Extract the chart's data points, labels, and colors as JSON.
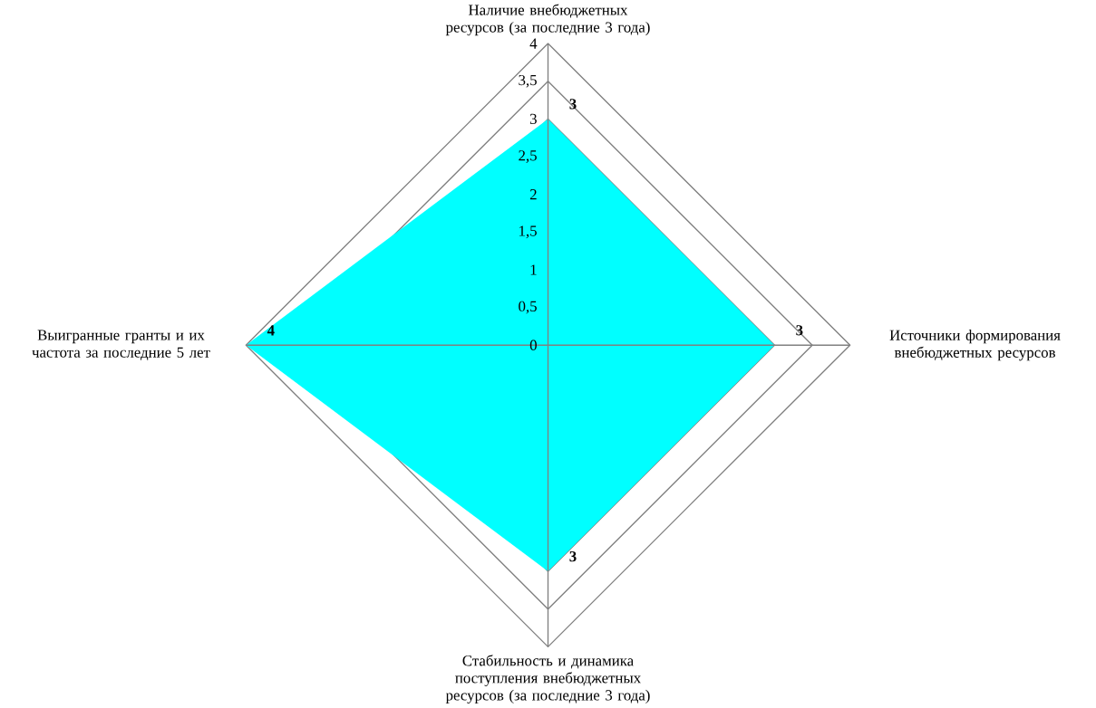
{
  "chart_data": {
    "type": "radar",
    "categories": [
      "Наличие внебюджетных ресурсов (за последние 3 года)",
      "Источники формирования внебюджетных ресурсов",
      "Стабильность и динамика поступления внебюджетных ресурсов (за последние 3 года)",
      "Выигранные гранты и их частота за последние 5 лет"
    ],
    "series": [
      {
        "color": "#00ffff",
        "values": [
          3,
          3,
          3,
          4
        ]
      }
    ],
    "ylim": [
      0,
      4
    ],
    "yticks": [
      0,
      {
        "value": 0.5,
        "label": "0,5"
      },
      1,
      {
        "value": 1.5,
        "label": "1,5"
      },
      2,
      {
        "value": 2.5,
        "label": "2,5"
      },
      3,
      {
        "value": 3.5,
        "label": "3,5"
      },
      4
    ],
    "grid": true,
    "data_labels": true
  }
}
